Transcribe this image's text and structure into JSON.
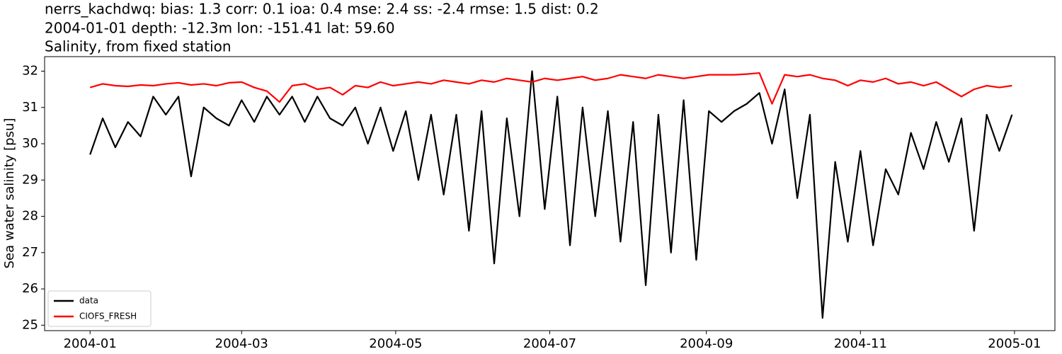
{
  "chart_data": {
    "type": "line",
    "title": "nerrs_kachdwq: bias: 1.3  corr: 0.1  ioa: 0.4  mse: 2.4  ss: -2.4  rmse: 1.5  dist: 0.2",
    "subtitle": "2004-01-01 depth: -12.3m lon: -151.41 lat: 59.60",
    "description": "Salinity, from fixed station",
    "y_label": "Sea water salinity [psu]",
    "x": [
      "2004-01-01",
      "2004-01-06",
      "2004-01-11",
      "2004-01-16",
      "2004-01-21",
      "2004-01-26",
      "2004-01-31",
      "2004-02-05",
      "2004-02-10",
      "2004-02-15",
      "2004-02-20",
      "2004-02-25",
      "2004-03-01",
      "2004-03-06",
      "2004-03-11",
      "2004-03-16",
      "2004-03-21",
      "2004-03-26",
      "2004-03-31",
      "2004-04-05",
      "2004-04-10",
      "2004-04-15",
      "2004-04-20",
      "2004-04-25",
      "2004-04-30",
      "2004-05-05",
      "2004-05-10",
      "2004-05-15",
      "2004-05-20",
      "2004-05-25",
      "2004-05-30",
      "2004-06-04",
      "2004-06-09",
      "2004-06-14",
      "2004-06-19",
      "2004-06-24",
      "2004-06-29",
      "2004-07-04",
      "2004-07-09",
      "2004-07-14",
      "2004-07-19",
      "2004-07-24",
      "2004-07-29",
      "2004-08-03",
      "2004-08-08",
      "2004-08-13",
      "2004-08-18",
      "2004-08-23",
      "2004-08-28",
      "2004-09-02",
      "2004-09-07",
      "2004-09-12",
      "2004-09-17",
      "2004-09-22",
      "2004-09-27",
      "2004-10-02",
      "2004-10-07",
      "2004-10-12",
      "2004-10-17",
      "2004-10-22",
      "2004-10-27",
      "2004-11-01",
      "2004-11-06",
      "2004-11-11",
      "2004-11-16",
      "2004-11-21",
      "2004-11-26",
      "2004-12-01",
      "2004-12-06",
      "2004-12-11",
      "2004-12-16",
      "2004-12-21",
      "2004-12-26",
      "2004-12-31"
    ],
    "series": [
      {
        "name": "data",
        "color": "#000000",
        "values": [
          29.7,
          30.7,
          29.9,
          30.6,
          30.2,
          31.3,
          30.8,
          31.3,
          29.1,
          31.0,
          30.7,
          30.5,
          31.2,
          30.6,
          31.3,
          30.8,
          31.3,
          30.6,
          31.3,
          30.7,
          30.5,
          31.0,
          30.0,
          31.0,
          29.8,
          30.9,
          29.0,
          30.8,
          28.6,
          30.8,
          27.6,
          30.9,
          26.7,
          30.7,
          28.0,
          32.0,
          28.2,
          31.3,
          27.2,
          31.0,
          28.0,
          30.9,
          27.3,
          30.6,
          26.1,
          30.8,
          27.0,
          31.2,
          26.8,
          30.9,
          30.6,
          30.9,
          31.1,
          31.4,
          30.0,
          31.5,
          28.5,
          30.8,
          25.2,
          29.5,
          27.3,
          29.8,
          27.2,
          29.3,
          28.6,
          30.3,
          29.3,
          30.6,
          29.5,
          30.7,
          27.6,
          30.8,
          29.8,
          30.8
        ]
      },
      {
        "name": "CIOFS_FRESH",
        "color": "#ff0000",
        "values": [
          31.55,
          31.65,
          31.6,
          31.58,
          31.62,
          31.6,
          31.65,
          31.68,
          31.62,
          31.65,
          31.6,
          31.68,
          31.7,
          31.55,
          31.45,
          31.15,
          31.6,
          31.65,
          31.5,
          31.55,
          31.35,
          31.6,
          31.55,
          31.7,
          31.6,
          31.65,
          31.7,
          31.65,
          31.75,
          31.7,
          31.65,
          31.75,
          31.7,
          31.8,
          31.75,
          31.7,
          31.8,
          31.75,
          31.8,
          31.85,
          31.75,
          31.8,
          31.9,
          31.85,
          31.8,
          31.9,
          31.85,
          31.8,
          31.85,
          31.9,
          31.9,
          31.9,
          31.92,
          31.95,
          31.1,
          31.9,
          31.85,
          31.9,
          31.8,
          31.75,
          31.6,
          31.75,
          31.7,
          31.8,
          31.65,
          31.7,
          31.6,
          31.7,
          31.5,
          31.3,
          31.5,
          31.6,
          31.55,
          31.6
        ]
      }
    ],
    "xlim": [
      "2003-12-14",
      "2005-01-17"
    ],
    "xticks": [
      {
        "value": "2004-01-01",
        "label": "2004-01"
      },
      {
        "value": "2004-03-01",
        "label": "2004-03"
      },
      {
        "value": "2004-05-01",
        "label": "2004-05"
      },
      {
        "value": "2004-07-01",
        "label": "2004-07"
      },
      {
        "value": "2004-09-01",
        "label": "2004-09"
      },
      {
        "value": "2004-11-01",
        "label": "2004-11"
      },
      {
        "value": "2005-01-01",
        "label": "2005-01"
      }
    ],
    "ylim": [
      24.85,
      32.4
    ],
    "yticks": [
      25,
      26,
      27,
      28,
      29,
      30,
      31,
      32
    ],
    "legend": "lower left"
  }
}
